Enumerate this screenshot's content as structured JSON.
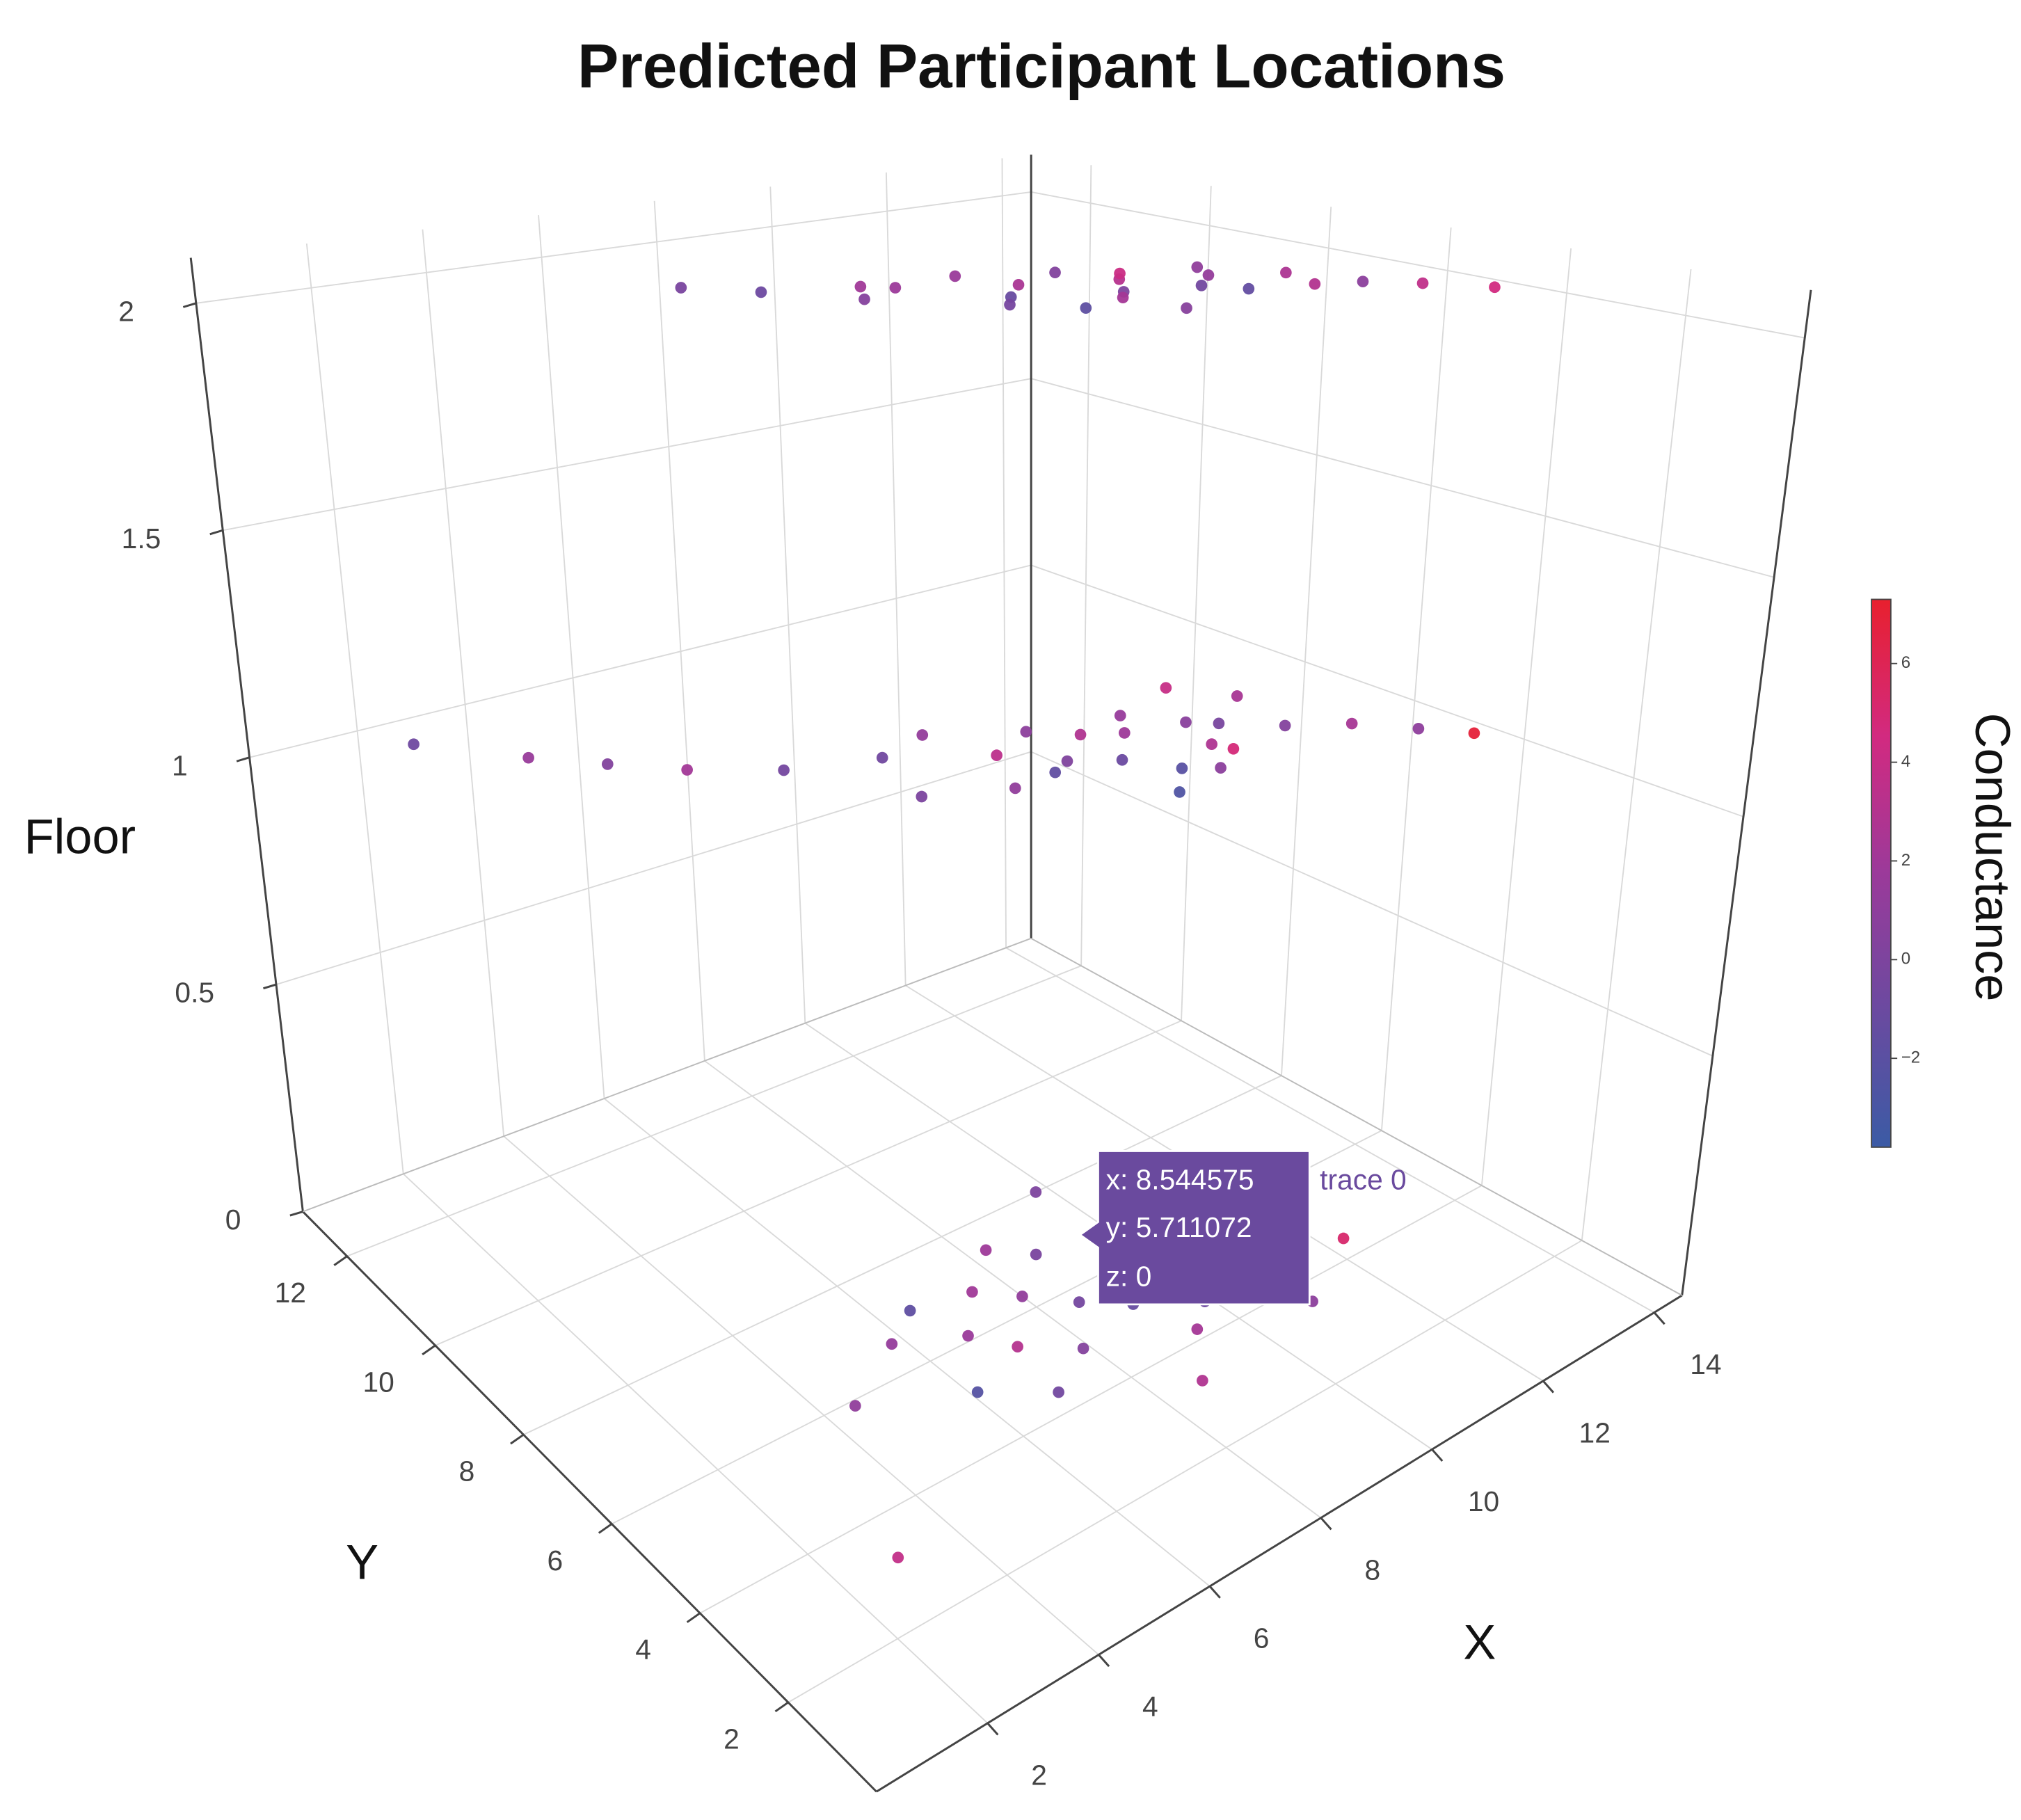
{
  "chart_data": {
    "type": "scatter3d",
    "title": "Predicted Participant Locations",
    "x_label": "X",
    "y_label": "Y",
    "z_label": "Floor",
    "xlim": [
      0,
      14.5
    ],
    "ylim": [
      0,
      13
    ],
    "zlim": [
      0,
      2.1
    ],
    "xticks": [
      2,
      4,
      6,
      8,
      10,
      12,
      14
    ],
    "yticks": [
      2,
      4,
      6,
      8,
      10,
      12
    ],
    "zticks": [
      0,
      0.5,
      1,
      1.5,
      2
    ],
    "grid": true,
    "series": [
      {
        "name": "trace 0",
        "x": [
          7.2,
          8.1,
          8.8,
          9.5,
          10.2,
          10.8,
          11.3,
          11.9,
          12.5,
          13.1,
          9.0,
          9.9,
          10.5,
          11.1,
          8.4,
          12.2,
          13.6,
          6.5,
          7.8,
          10.0,
          11.6,
          9.3,
          12.8,
          5.9,
          14.1,
          9.5,
          10.1,
          10.8,
          11.4,
          12.0,
          8.9,
          9.8,
          10.5,
          11.2,
          12.6,
          13.3,
          7.6,
          8.3,
          9.1,
          10.3,
          11.7,
          12.4,
          13.8,
          6.2,
          5.1,
          4.3,
          3.5,
          9.9,
          10.9,
          11.5,
          8.6,
          7.1,
          12.9,
          14.2,
          2.4,
          8.544575,
          8.0,
          7.5,
          9.1,
          9.6,
          7.2,
          8.8,
          6.8,
          10.2,
          9.9,
          7.9,
          8.3,
          6.5,
          10.8,
          11.5,
          9.4,
          7.0,
          5.8,
          12.3,
          11.0,
          6.1,
          8.7,
          9.8,
          4.5,
          3.0
        ],
        "y": [
          8.5,
          8.9,
          7.6,
          8.2,
          7.1,
          7.8,
          6.9,
          7.4,
          6.2,
          6.0,
          6.5,
          6.8,
          8.6,
          8.1,
          7.2,
          7.9,
          5.5,
          9.6,
          9.2,
          5.8,
          6.4,
          9.1,
          7.0,
          10.4,
          4.8,
          7.2,
          6.8,
          7.5,
          6.5,
          7.0,
          7.9,
          8.3,
          6.1,
          8.0,
          6.4,
          5.9,
          8.7,
          6.9,
          7.0,
          7.8,
          7.3,
          8.4,
          5.2,
          9.1,
          9.8,
          10.5,
          11.2,
          5.5,
          5.8,
          6.2,
          9.0,
          7.4,
          7.6,
          4.6,
          12.3,
          5.711072,
          6.3,
          6.8,
          5.2,
          6.0,
          5.5,
          6.9,
          6.1,
          5.4,
          4.6,
          4.9,
          7.4,
          7.0,
          6.6,
          5.0,
          4.2,
          4.4,
          6.6,
          4.4,
          3.6,
          5.1,
          3.3,
          8.0,
          5.9,
          3.2
        ],
        "z": [
          2,
          2,
          2,
          2,
          2,
          2,
          2,
          2,
          2,
          2,
          2,
          2,
          2,
          2,
          2,
          2,
          2,
          2,
          2,
          2,
          2,
          2,
          2,
          2,
          2,
          1,
          1,
          1,
          1,
          1,
          1,
          1,
          1,
          1,
          1,
          1,
          1,
          1,
          1,
          1,
          1,
          1,
          1,
          1,
          1,
          1,
          1,
          1,
          1,
          1,
          1,
          1,
          1,
          1,
          1,
          0,
          0,
          0,
          0,
          0,
          0,
          0,
          0,
          0,
          0,
          0,
          0,
          0,
          0,
          0,
          0,
          0,
          0,
          0,
          0,
          0,
          0,
          0,
          0,
          0
        ],
        "color_values": [
          0.5,
          1.8,
          -1.2,
          2.5,
          0.1,
          3.1,
          -0.6,
          1.4,
          2.9,
          0.8,
          -1.8,
          2.2,
          0.3,
          4.1,
          -0.4,
          1.1,
          3.6,
          -0.9,
          2.0,
          0.6,
          -1.5,
          1.7,
          2.6,
          -0.2,
          4.5,
          0.2,
          -1.1,
          1.9,
          2.7,
          -0.3,
          3.4,
          0.9,
          -2.1,
          1.5,
          0.4,
          2.3,
          -0.7,
          1.2,
          -1.6,
          2.8,
          0.7,
          3.9,
          1.0,
          -0.5,
          2.1,
          0.3,
          1.6,
          -2.6,
          0.8,
          4.8,
          1.3,
          -0.1,
          2.4,
          6.9,
          -0.8,
          -0.5,
          1.2,
          2.0,
          -1.3,
          0.6,
          3.0,
          -0.2,
          1.7,
          2.5,
          -0.9,
          0.4,
          1.9,
          -1.7,
          3.3,
          0.1,
          2.2,
          -0.6,
          1.4,
          5.2,
          0.9,
          -2.3,
          2.8,
          0.0,
          1.1,
          3.7
        ]
      }
    ],
    "colorbar": {
      "title": "Conductance",
      "clim": [
        -3.8,
        7.3
      ],
      "ticks": [
        {
          "value": -2,
          "label": "−2"
        },
        0,
        2,
        4,
        6
      ],
      "colorscale": [
        "#3b5ba5",
        "#6b4aa0",
        "#9b3a9a",
        "#d22a80",
        "#e8202e"
      ]
    },
    "hover": {
      "lines": [
        "x: 8.544575",
        "y: 5.711072",
        "z: 0"
      ]
    }
  }
}
